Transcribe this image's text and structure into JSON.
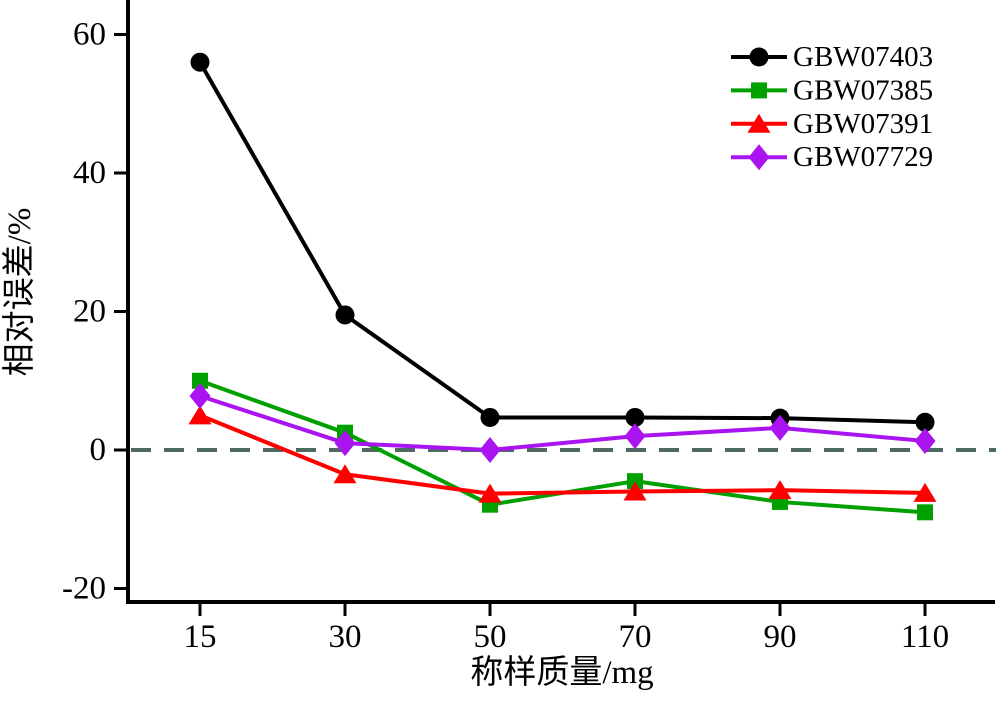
{
  "chart_data": {
    "type": "line",
    "title": "",
    "xlabel": "称样质量/mg",
    "ylabel": "相对误差/%",
    "categories": [
      "15",
      "30",
      "50",
      "70",
      "90",
      "110"
    ],
    "x_ticks": [
      "15",
      "30",
      "50",
      "70",
      "90",
      "110"
    ],
    "y_ticks": [
      60,
      40,
      20,
      0,
      -20
    ],
    "ylim": [
      -22,
      65
    ],
    "grid": false,
    "legend_position": "top-right",
    "zero_line": {
      "style": "dashed",
      "value": 0,
      "color": "#4E6862"
    },
    "axis_color": "#000000",
    "series": [
      {
        "name": "GBW07403",
        "color": "#000000",
        "marker": "circle",
        "values": [
          56,
          19.5,
          4.7,
          4.7,
          4.6,
          4.0
        ]
      },
      {
        "name": "GBW07385",
        "color": "#00A000",
        "marker": "square",
        "values": [
          10,
          2.5,
          -7.9,
          -4.5,
          -7.5,
          -9.0
        ]
      },
      {
        "name": "GBW07391",
        "color": "#FF0000",
        "marker": "triangle",
        "values": [
          5.0,
          -3.5,
          -6.3,
          -6.0,
          -5.8,
          -6.2
        ]
      },
      {
        "name": "GBW07729",
        "color": "#A914F0",
        "marker": "diamond",
        "values": [
          7.8,
          1.0,
          0.0,
          2.0,
          3.2,
          1.3
        ]
      }
    ]
  }
}
